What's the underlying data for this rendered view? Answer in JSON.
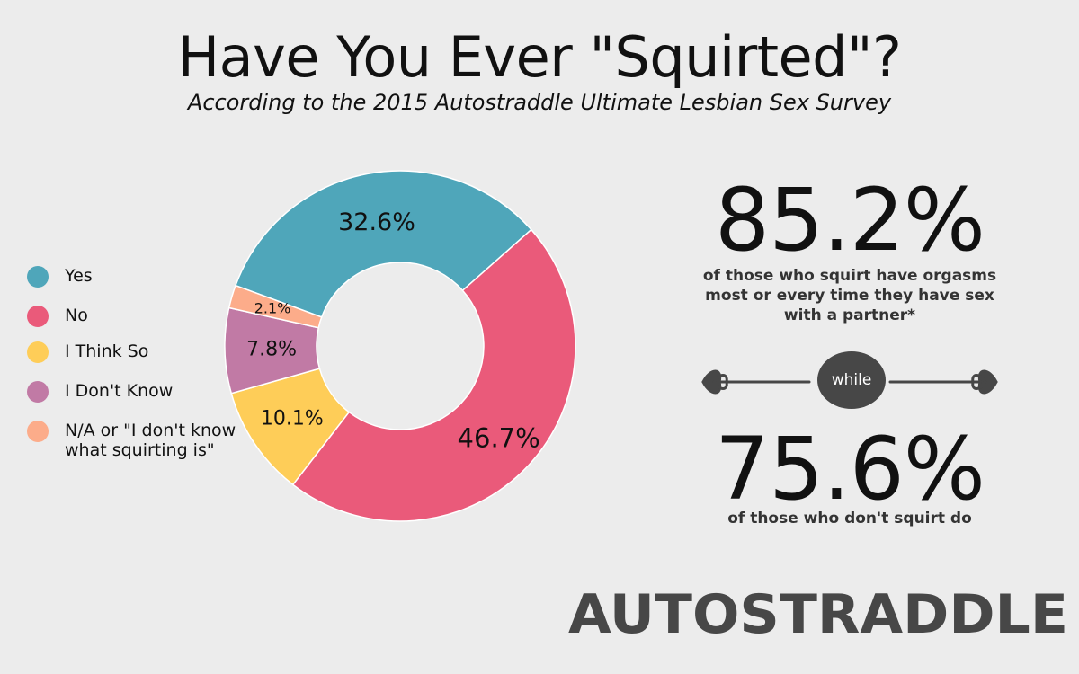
{
  "header": {
    "title": "Have You Ever \"Squirted\"?",
    "subtitle": "According to the 2015 Autostraddle Ultimate Lesbian Sex Survey"
  },
  "chart_data": {
    "type": "pie",
    "donut": true,
    "categories": [
      "Yes",
      "No",
      "I Think So",
      "I Don't Know",
      "N/A or \"I don't know what squirting is\""
    ],
    "values": [
      32.6,
      46.7,
      10.1,
      7.8,
      2.1
    ],
    "labels": [
      "32.6%",
      "46.7%",
      "10.1%",
      "7.8%",
      "2.1%"
    ],
    "colors": [
      "#4fa6ba",
      "#ea5a7a",
      "#fecd58",
      "#c17aa5",
      "#fcac8a"
    ],
    "legend_position": "left"
  },
  "legend": {
    "items": [
      {
        "label": "Yes",
        "color": "#4fa6ba"
      },
      {
        "label": "No",
        "color": "#ea5a7a"
      },
      {
        "label": "I Think So",
        "color": "#fecd58"
      },
      {
        "label": "I Don't Know",
        "color": "#c17aa5"
      },
      {
        "label": "N/A or \"I don't know what squirting is\"",
        "color": "#fcac8a"
      }
    ]
  },
  "stats": {
    "first_value": "85.2%",
    "first_text": "of those who squirt have orgasms most or every time they have sex with a partner*",
    "connector": "while",
    "second_value": "75.6%",
    "second_text": "of those who don't squirt do"
  },
  "logo": {
    "text": "AUTOSTRADDLE",
    "color": "#474747"
  }
}
